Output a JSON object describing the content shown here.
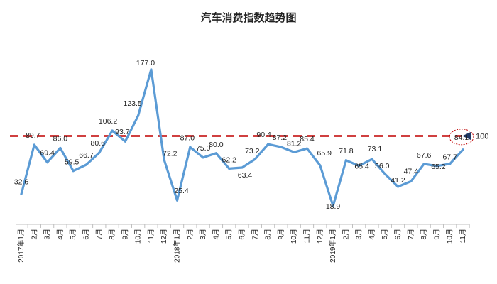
{
  "chart_data": {
    "type": "line",
    "title": "汽车消费指数趋势图",
    "categories": [
      "2017年1月",
      "2月",
      "3月",
      "4月",
      "5月",
      "6月",
      "7月",
      "8月",
      "9月",
      "10月",
      "11月",
      "12月",
      "2018年1月",
      "2月",
      "3月",
      "4月",
      "5月",
      "6月",
      "7月",
      "8月",
      "9月",
      "10月",
      "11月",
      "12月",
      "2019年1月",
      "2月",
      "3月",
      "4月",
      "5月",
      "6月",
      "7月",
      "8月",
      "9月",
      "10月",
      "11月"
    ],
    "series": [
      {
        "values": [
          32.6,
          89.7,
          69.4,
          86.0,
          59.5,
          66.7,
          80.6,
          106.2,
          93.7,
          123.5,
          177.0,
          72.2,
          25.4,
          87.0,
          75.0,
          80.0,
          62.2,
          63.4,
          73.2,
          90.4,
          87.2,
          81.2,
          85.4,
          65.9,
          18.9,
          71.8,
          65.4,
          73.1,
          56.0,
          41.2,
          47.4,
          67.6,
          65.2,
          67.7,
          84.1
        ]
      }
    ],
    "data_labels": [
      "32.6",
      "89.7",
      "69.4",
      "86.0",
      "59.5",
      "66.7",
      "80.6",
      "106.2",
      "93.7",
      "123.5",
      "177.0",
      "72.2",
      "25.4",
      "87.0",
      "75.0",
      "80.0",
      "62.2",
      "63.4",
      "73.2",
      "90.4",
      "87.2",
      "81.2",
      "85.4",
      "65.9",
      "18.9",
      "71.8",
      "65.4",
      "73.1",
      "56.0",
      "41.2",
      "47.4",
      "67.6",
      "65.2",
      "67.7",
      "84.1"
    ],
    "reference_line": {
      "value": 100,
      "label": "100"
    },
    "highlighted_point": 34,
    "ylim": [
      0,
      190
    ],
    "grid": false,
    "legend": "none",
    "colors": {
      "line": "#5B9BD5",
      "reference": "#C00000",
      "highlight_circle": "#C00000",
      "arrow": "#1F3864"
    }
  }
}
